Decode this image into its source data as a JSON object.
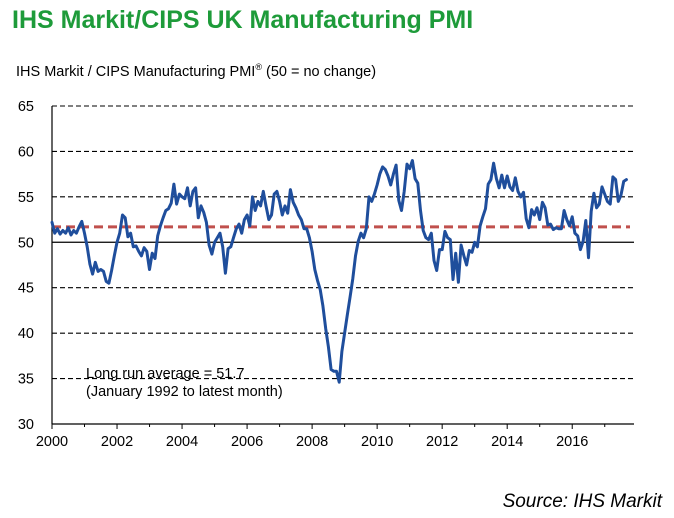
{
  "chart_data": {
    "type": "line",
    "title": "IHS Markit/CIPS UK Manufacturing PMI",
    "subtitle_main": "IHS Markit / CIPS Manufacturing PMI",
    "subtitle_reg": "®",
    "subtitle_tail": " (50 = no change)",
    "xlim": [
      2000,
      2017.9
    ],
    "ylim": [
      30,
      65
    ],
    "y_ticks": [
      30,
      35,
      40,
      45,
      50,
      55,
      60,
      65
    ],
    "y_tick_labels": [
      "30",
      "35",
      "40",
      "45",
      "50",
      "55",
      "60",
      "65"
    ],
    "x_ticks": [
      2000,
      2002,
      2004,
      2006,
      2008,
      2010,
      2012,
      2014,
      2016
    ],
    "x_tick_labels": [
      "2000",
      "2002",
      "2004",
      "2006",
      "2008",
      "2010",
      "2012",
      "2014",
      "2016"
    ],
    "grid": "horizontal dashed",
    "reference_lines": [
      {
        "value": 50,
        "style": "solid",
        "color": "#000000"
      }
    ],
    "average_line": {
      "value": 51.7,
      "color": "#c0504d",
      "style": "dashed"
    },
    "annotation_line1": "Long run average = 51.7",
    "annotation_line2": "(January 1992 to latest month)",
    "series": [
      {
        "color": "#1f4e9c",
        "x": [
          2000.0,
          2000.083,
          2000.167,
          2000.25,
          2000.333,
          2000.417,
          2000.5,
          2000.583,
          2000.667,
          2000.75,
          2000.833,
          2000.917,
          2001.0,
          2001.083,
          2001.167,
          2001.25,
          2001.333,
          2001.417,
          2001.5,
          2001.583,
          2001.667,
          2001.75,
          2001.833,
          2001.917,
          2002.0,
          2002.083,
          2002.167,
          2002.25,
          2002.333,
          2002.417,
          2002.5,
          2002.583,
          2002.667,
          2002.75,
          2002.833,
          2002.917,
          2003.0,
          2003.083,
          2003.167,
          2003.25,
          2003.333,
          2003.417,
          2003.5,
          2003.583,
          2003.667,
          2003.75,
          2003.833,
          2003.917,
          2004.0,
          2004.083,
          2004.167,
          2004.25,
          2004.333,
          2004.417,
          2004.5,
          2004.583,
          2004.667,
          2004.75,
          2004.833,
          2004.917,
          2005.0,
          2005.083,
          2005.167,
          2005.25,
          2005.333,
          2005.417,
          2005.5,
          2005.583,
          2005.667,
          2005.75,
          2005.833,
          2005.917,
          2006.0,
          2006.083,
          2006.167,
          2006.25,
          2006.333,
          2006.417,
          2006.5,
          2006.583,
          2006.667,
          2006.75,
          2006.833,
          2006.917,
          2007.0,
          2007.083,
          2007.167,
          2007.25,
          2007.333,
          2007.417,
          2007.5,
          2007.583,
          2007.667,
          2007.75,
          2007.833,
          2007.917,
          2008.0,
          2008.083,
          2008.167,
          2008.25,
          2008.333,
          2008.417,
          2008.5,
          2008.583,
          2008.667,
          2008.75,
          2008.833,
          2008.917,
          2009.0,
          2009.083,
          2009.167,
          2009.25,
          2009.333,
          2009.417,
          2009.5,
          2009.583,
          2009.667,
          2009.75,
          2009.833,
          2009.917,
          2010.0,
          2010.083,
          2010.167,
          2010.25,
          2010.333,
          2010.417,
          2010.5,
          2010.583,
          2010.667,
          2010.75,
          2010.833,
          2010.917,
          2011.0,
          2011.083,
          2011.167,
          2011.25,
          2011.333,
          2011.417,
          2011.5,
          2011.583,
          2011.667,
          2011.75,
          2011.833,
          2011.917,
          2012.0,
          2012.083,
          2012.167,
          2012.25,
          2012.333,
          2012.417,
          2012.5,
          2012.583,
          2012.667,
          2012.75,
          2012.833,
          2012.917,
          2013.0,
          2013.083,
          2013.167,
          2013.25,
          2013.333,
          2013.417,
          2013.5,
          2013.583,
          2013.667,
          2013.75,
          2013.833,
          2013.917,
          2014.0,
          2014.083,
          2014.167,
          2014.25,
          2014.333,
          2014.417,
          2014.5,
          2014.583,
          2014.667,
          2014.75,
          2014.833,
          2014.917,
          2015.0,
          2015.083,
          2015.167,
          2015.25,
          2015.333,
          2015.417,
          2015.5,
          2015.583,
          2015.667,
          2015.75,
          2015.833,
          2015.917,
          2016.0,
          2016.083,
          2016.167,
          2016.25,
          2016.333,
          2016.417,
          2016.5,
          2016.583,
          2016.667,
          2016.75,
          2016.833,
          2016.917,
          2017.0,
          2017.083,
          2017.167,
          2017.25,
          2017.333,
          2017.417,
          2017.5,
          2017.583,
          2017.667
        ],
        "values": [
          52.2,
          51.0,
          51.5,
          50.9,
          51.3,
          51.0,
          51.6,
          50.8,
          51.3,
          51.0,
          51.7,
          52.3,
          51.0,
          49.5,
          47.6,
          46.5,
          47.8,
          46.8,
          47.0,
          46.8,
          45.7,
          45.5,
          46.9,
          48.5,
          50.0,
          51.0,
          53.0,
          52.7,
          50.6,
          51.0,
          49.5,
          49.6,
          49.0,
          48.5,
          49.4,
          49.0,
          47.0,
          48.8,
          48.2,
          50.7,
          51.8,
          52.7,
          53.5,
          53.7,
          54.3,
          56.4,
          54.2,
          55.3,
          55.0,
          54.8,
          56.0,
          54.0,
          55.6,
          56.0,
          52.7,
          54.0,
          53.3,
          52.2,
          49.7,
          48.7,
          50.0,
          50.5,
          51.0,
          49.5,
          46.6,
          49.3,
          49.5,
          50.5,
          51.5,
          52.0,
          51.0,
          52.5,
          53.0,
          51.8,
          55.0,
          53.5,
          54.5,
          54.0,
          55.6,
          54.0,
          52.5,
          53.0,
          55.3,
          55.6,
          54.5,
          53.0,
          54.0,
          53.2,
          55.8,
          54.4,
          53.8,
          53.0,
          52.5,
          51.5,
          51.5,
          50.5,
          49.0,
          47.0,
          45.8,
          44.8,
          43.0,
          40.5,
          38.5,
          36.0,
          35.8,
          35.8,
          34.6,
          38.0,
          40.0,
          42.0,
          44.0,
          46.0,
          48.5,
          50.1,
          51.0,
          50.5,
          51.5,
          55.0,
          54.5,
          55.3,
          56.3,
          57.5,
          58.3,
          58.0,
          57.3,
          56.3,
          57.5,
          58.5,
          54.6,
          53.5,
          55.6,
          58.6,
          58.1,
          59.0,
          57.0,
          56.5,
          53.5,
          51.3,
          50.5,
          50.3,
          51.0,
          48.0,
          46.9,
          49.2,
          49.2,
          51.2,
          50.5,
          50.3,
          45.9,
          48.8,
          45.6,
          49.7,
          48.5,
          47.5,
          49.1,
          48.9,
          50.0,
          49.5,
          51.8,
          52.8,
          53.7,
          56.4,
          56.9,
          58.7,
          57.0,
          56.0,
          57.4,
          56.0,
          57.3,
          56.1,
          55.7,
          57.1,
          55.6,
          55.0,
          55.5,
          52.6,
          51.6,
          53.6,
          53.0,
          53.8,
          52.5,
          54.4,
          53.8,
          51.9,
          52.0,
          51.4,
          51.6,
          51.5,
          51.5,
          53.5,
          52.5,
          51.8,
          52.8,
          51.0,
          50.7,
          49.2,
          50.1,
          52.4,
          48.3,
          53.4,
          55.4,
          53.8,
          54.2,
          56.1,
          55.3,
          54.5,
          54.2,
          57.2,
          56.9,
          54.5,
          55.2,
          56.7,
          56.9
        ]
      }
    ]
  },
  "source_label": "Source: IHS Markit"
}
